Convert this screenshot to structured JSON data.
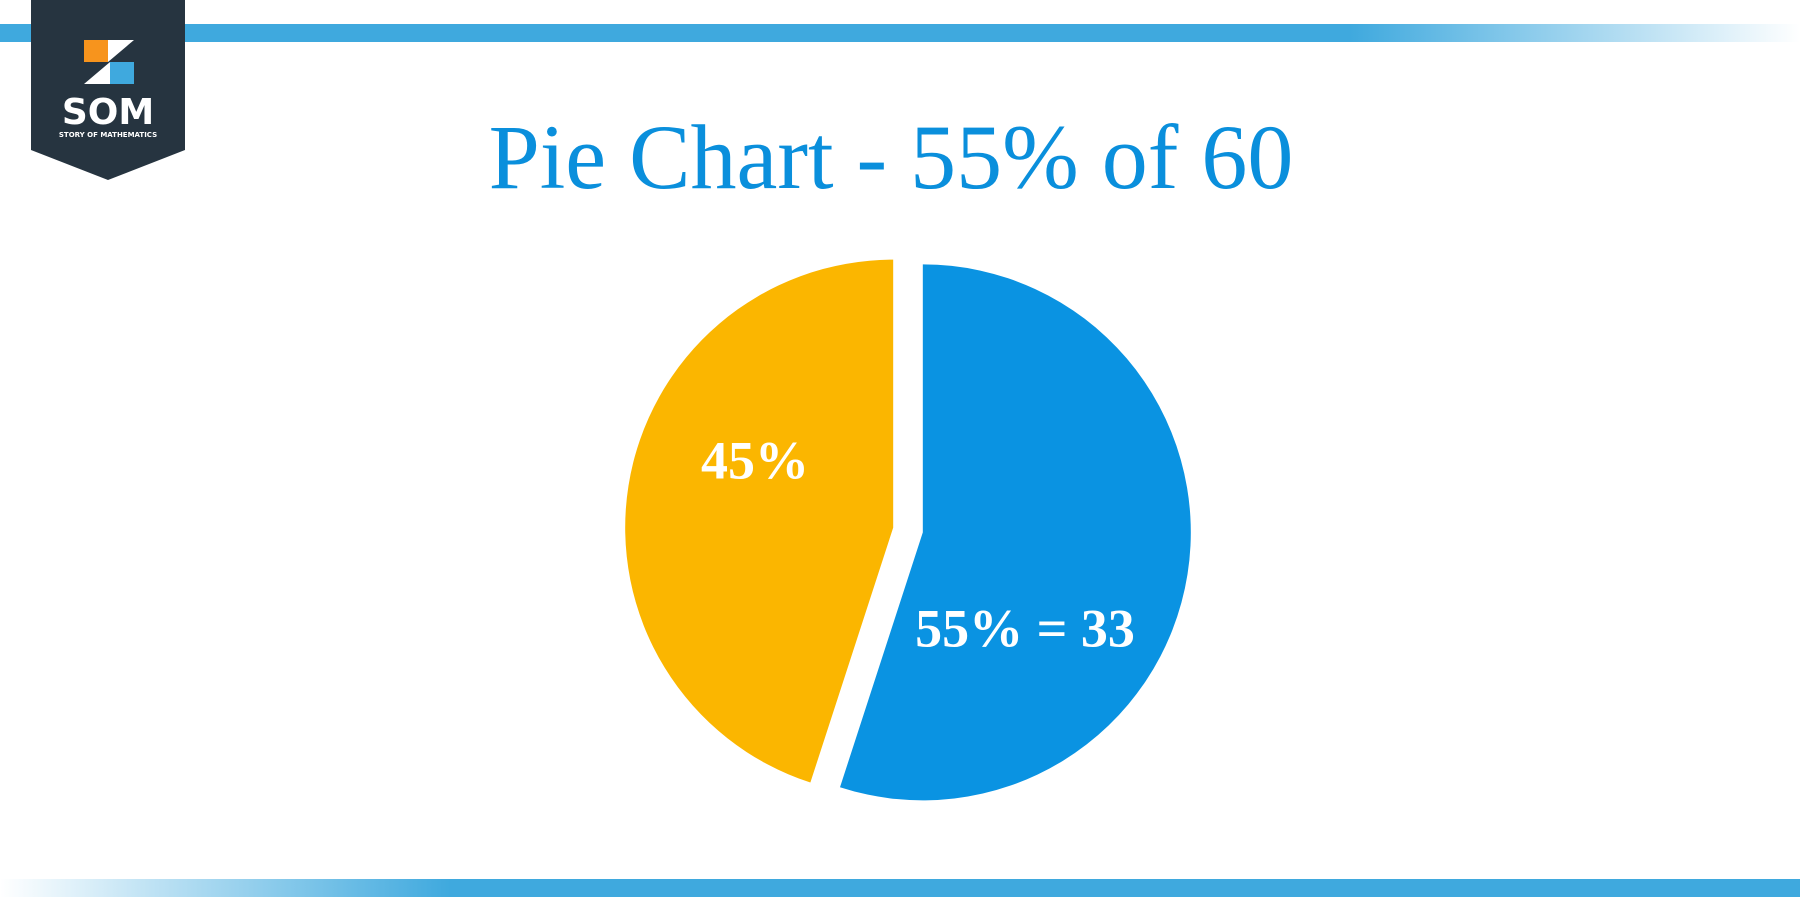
{
  "logo": {
    "text": "SOM",
    "subtitle": "STORY OF MATHEMATICS"
  },
  "chart_data": {
    "type": "pie",
    "title": "Pie Chart - 55% of 60",
    "values": [
      55,
      45
    ],
    "value_labels": [
      "55% = 33",
      "45%"
    ],
    "colors": [
      "#0a93e2",
      "#fbb600"
    ]
  }
}
